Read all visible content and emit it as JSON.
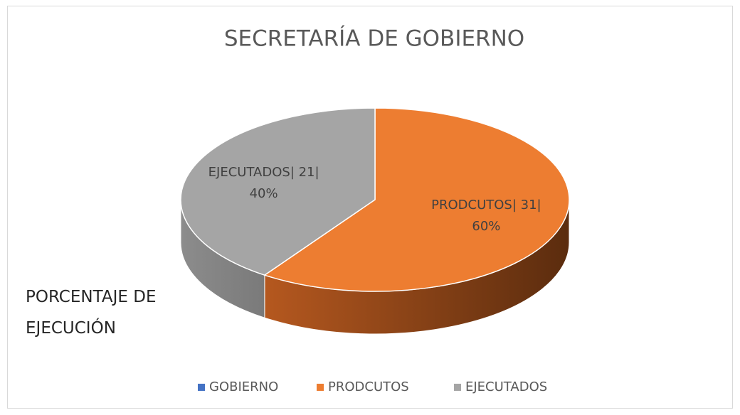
{
  "chart_data": {
    "type": "pie3d",
    "title": "SECRETARÍA DE GOBIERNO",
    "annotation": "PORCENTAJE DE EJECUCIÓN",
    "categories": [
      "GOBIERNO",
      "PRODCUTOS",
      "EJECUTADOS"
    ],
    "values": [
      0,
      31,
      21
    ],
    "value_labels": [
      null,
      [
        "PRODCUTOS| 31|",
        "60%"
      ],
      [
        "EJECUTADOS| 21|",
        "40%"
      ]
    ],
    "colors": [
      "#4472c4",
      "#ed7d31",
      "#a5a5a5"
    ],
    "legend": "bottom"
  }
}
